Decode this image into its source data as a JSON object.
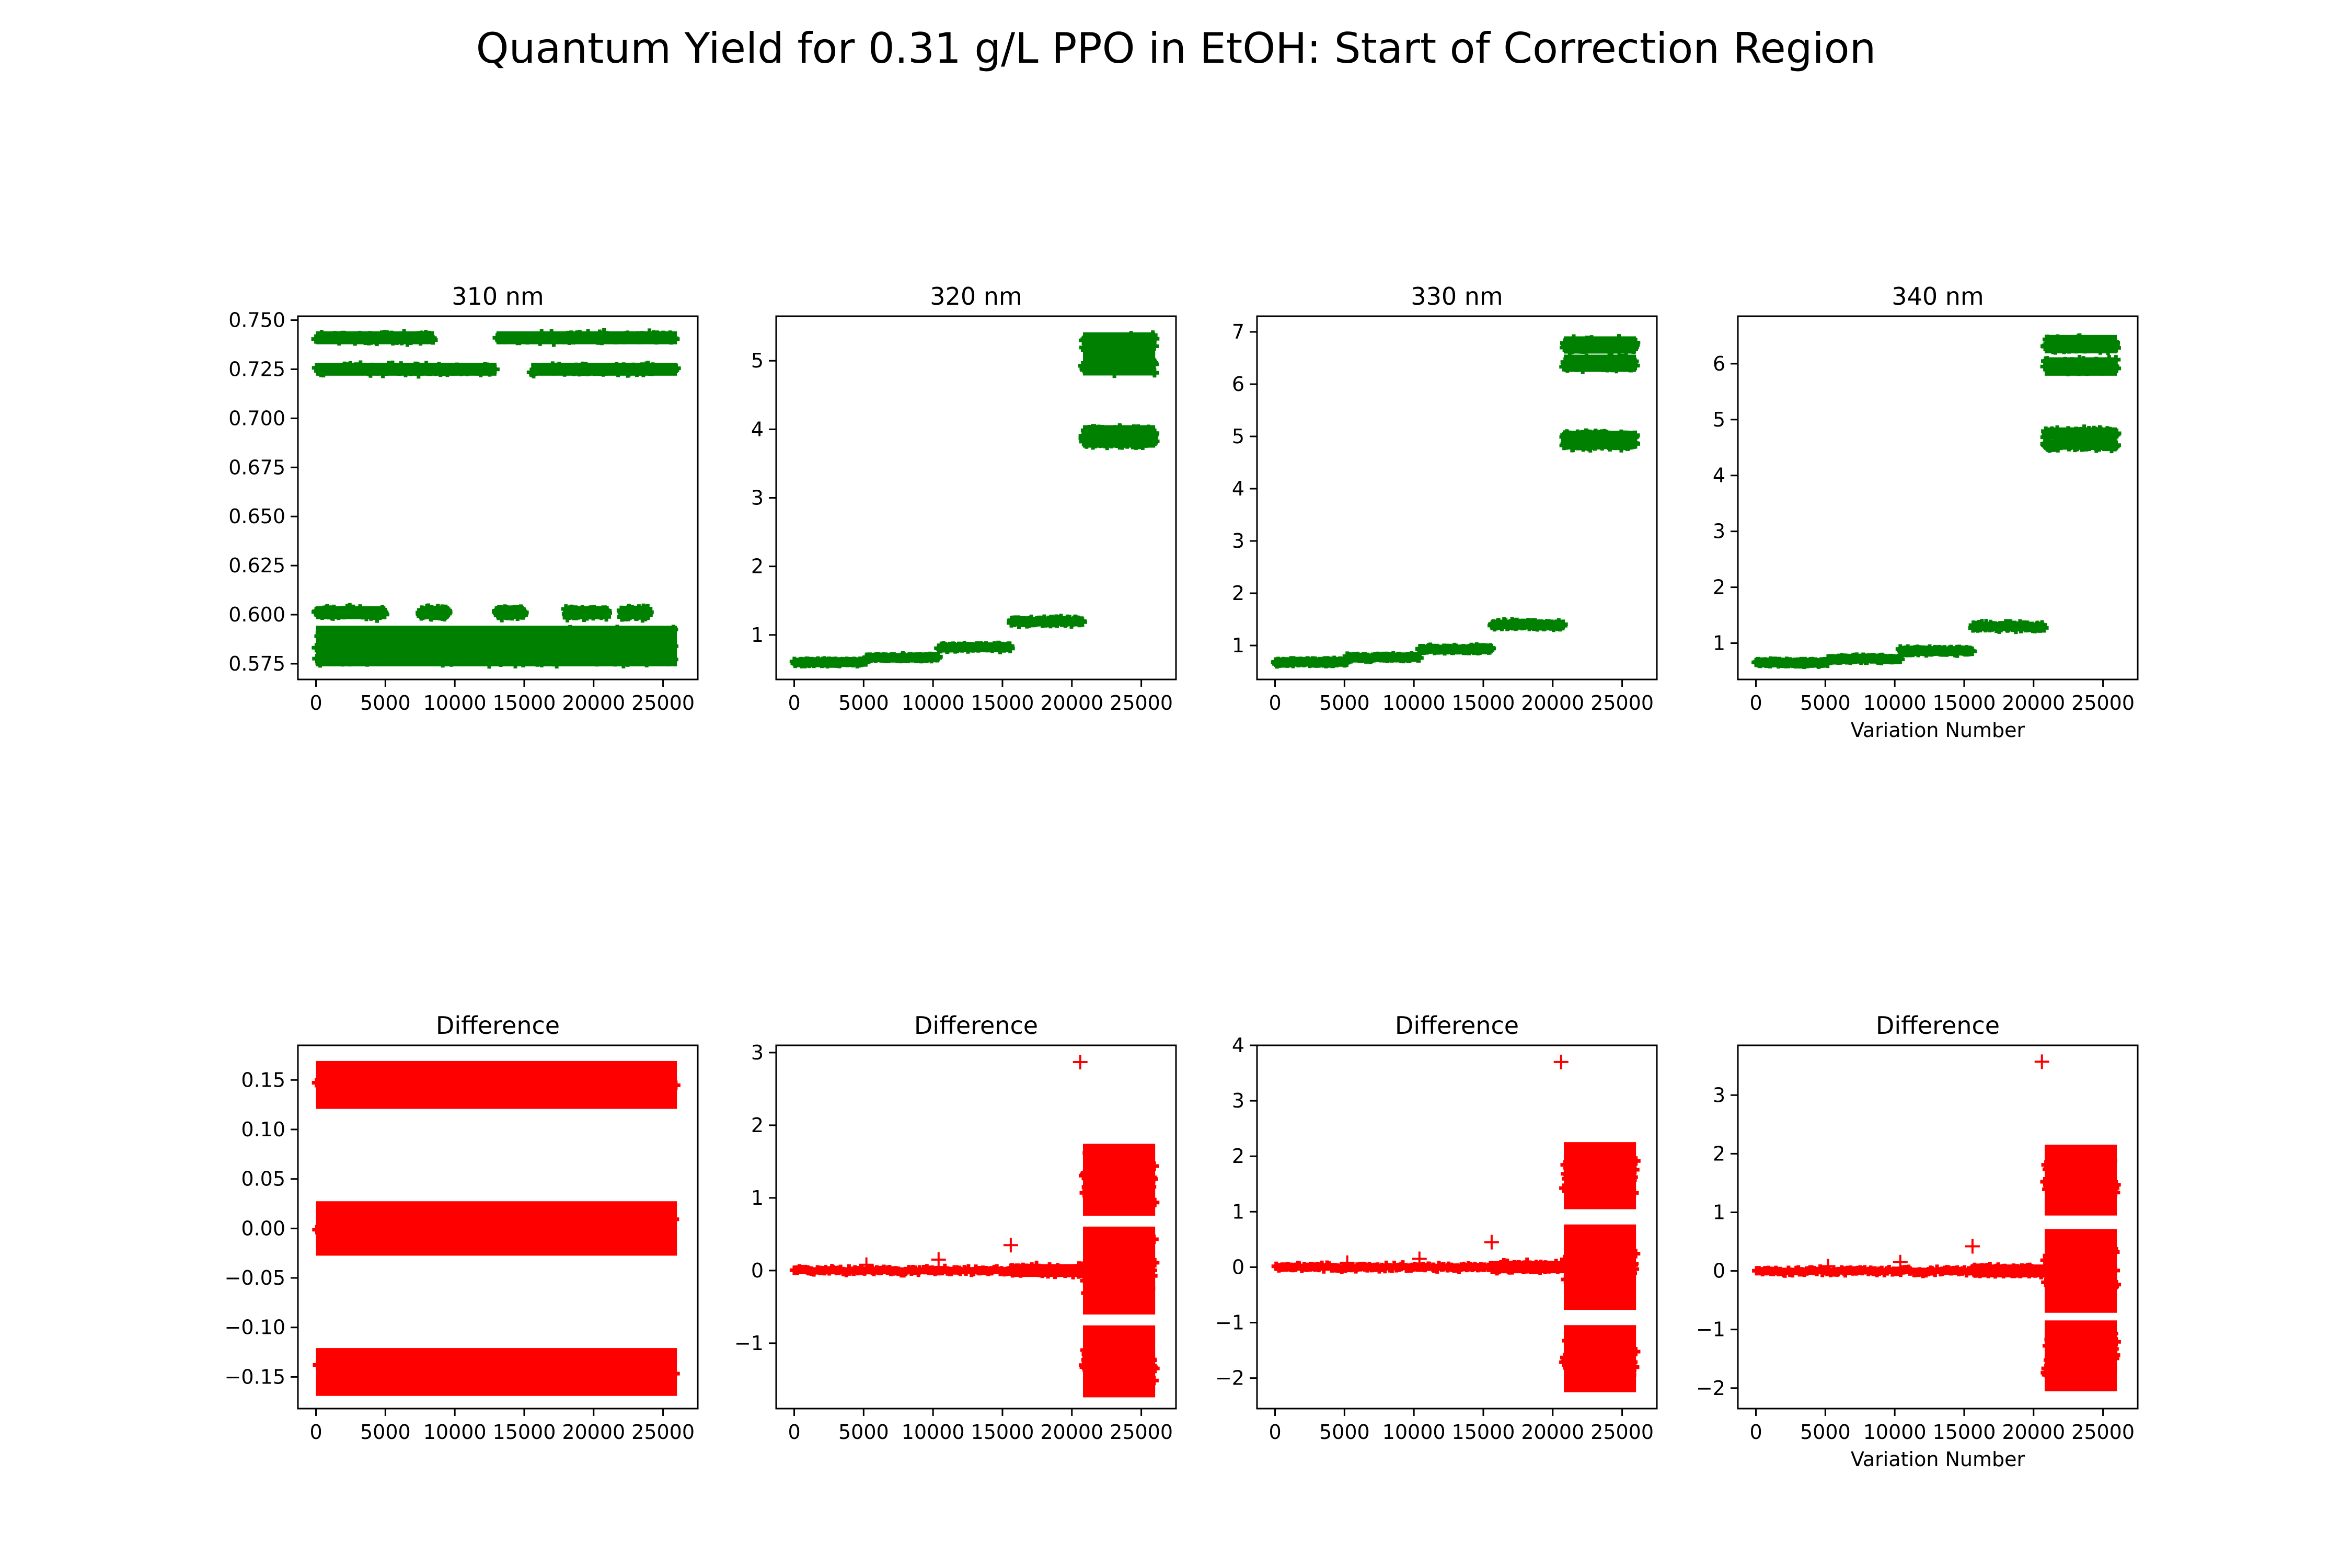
{
  "figure": {
    "title": "Quantum Yield for 0.31 g/L PPO in EtOH: Start of Correction Region",
    "marker_colors": {
      "top": "#008000",
      "bottom": "#ff0000"
    }
  },
  "chart_data": [
    {
      "type": "scatter",
      "title": "310 nm",
      "xlabel": "",
      "ylabel": "",
      "marker": "+",
      "color": "#008000",
      "xlim": [
        -1300,
        27500
      ],
      "ylim": [
        0.567,
        0.752
      ],
      "xticks": [
        0,
        5000,
        10000,
        15000,
        20000,
        25000
      ],
      "xtick_labels": [
        "0",
        "5000",
        "10000",
        "15000",
        "20000",
        "25000"
      ],
      "yticks": [
        0.575,
        0.6,
        0.625,
        0.65,
        0.675,
        0.7,
        0.725,
        0.75
      ],
      "ytick_labels": [
        "0.575",
        "0.600",
        "0.625",
        "0.650",
        "0.675",
        "0.700",
        "0.725",
        "0.750"
      ],
      "bands": [
        {
          "x": [
            0,
            8500
          ],
          "y": 0.741,
          "spread": 0.003
        },
        {
          "x": [
            13000,
            26000
          ],
          "y": 0.741,
          "spread": 0.003
        },
        {
          "x": [
            0,
            13000
          ],
          "y": 0.725,
          "spread": 0.003
        },
        {
          "x": [
            15500,
            26000
          ],
          "y": 0.725,
          "spread": 0.003
        },
        {
          "x": [
            0,
            5000
          ],
          "y": 0.601,
          "spread": 0.003
        },
        {
          "x": [
            7500,
            9500
          ],
          "y": 0.601,
          "spread": 0.003
        },
        {
          "x": [
            13000,
            15000
          ],
          "y": 0.601,
          "spread": 0.003
        },
        {
          "x": [
            18000,
            21000
          ],
          "y": 0.601,
          "spread": 0.003
        },
        {
          "x": [
            22000,
            24000
          ],
          "y": 0.601,
          "spread": 0.003
        },
        {
          "x": [
            0,
            26000
          ],
          "y": 0.59,
          "spread": 0.004
        },
        {
          "x": [
            0,
            26000
          ],
          "y": 0.583,
          "spread": 0.004
        },
        {
          "x": [
            0,
            26000
          ],
          "y": 0.577,
          "spread": 0.003
        }
      ],
      "outliers": []
    },
    {
      "type": "scatter",
      "title": "320 nm",
      "xlabel": "",
      "ylabel": "",
      "marker": "+",
      "color": "#008000",
      "xlim": [
        -1300,
        27500
      ],
      "ylim": [
        0.35,
        5.65
      ],
      "xticks": [
        0,
        5000,
        10000,
        15000,
        20000,
        25000
      ],
      "xtick_labels": [
        "0",
        "5000",
        "10000",
        "15000",
        "20000",
        "25000"
      ],
      "yticks": [
        1,
        2,
        3,
        4,
        5
      ],
      "ytick_labels": [
        "1",
        "2",
        "3",
        "4",
        "5"
      ],
      "bands": [
        {
          "x": [
            0,
            5200
          ],
          "y": 0.6,
          "spread": 0.03
        },
        {
          "x": [
            5200,
            10400
          ],
          "y": 0.67,
          "spread": 0.03
        },
        {
          "x": [
            10400,
            15600
          ],
          "y": 0.82,
          "spread": 0.04
        },
        {
          "x": [
            15600,
            20800
          ],
          "y": 1.2,
          "spread": 0.05
        },
        {
          "x": [
            20800,
            26000
          ],
          "y": 5.25,
          "spread": 0.15
        },
        {
          "x": [
            20800,
            26000
          ],
          "y": 4.95,
          "spread": 0.15
        },
        {
          "x": [
            20800,
            26000
          ],
          "y": 3.95,
          "spread": 0.1
        },
        {
          "x": [
            20800,
            26000
          ],
          "y": 3.82,
          "spread": 0.08
        }
      ],
      "outliers": []
    },
    {
      "type": "scatter",
      "title": "330 nm",
      "xlabel": "",
      "ylabel": "",
      "marker": "+",
      "color": "#008000",
      "xlim": [
        -1300,
        27500
      ],
      "ylim": [
        0.35,
        7.3
      ],
      "xticks": [
        0,
        5000,
        10000,
        15000,
        20000,
        25000
      ],
      "xtick_labels": [
        "0",
        "5000",
        "10000",
        "15000",
        "20000",
        "25000"
      ],
      "yticks": [
        1,
        2,
        3,
        4,
        5,
        6,
        7
      ],
      "ytick_labels": [
        "1",
        "2",
        "3",
        "4",
        "5",
        "6",
        "7"
      ],
      "bands": [
        {
          "x": [
            0,
            5200
          ],
          "y": 0.68,
          "spread": 0.04
        },
        {
          "x": [
            5200,
            10400
          ],
          "y": 0.77,
          "spread": 0.04
        },
        {
          "x": [
            10400,
            15600
          ],
          "y": 0.93,
          "spread": 0.05
        },
        {
          "x": [
            15600,
            20800
          ],
          "y": 1.4,
          "spread": 0.07
        },
        {
          "x": [
            20800,
            26000
          ],
          "y": 6.75,
          "spread": 0.15
        },
        {
          "x": [
            20800,
            26000
          ],
          "y": 6.4,
          "spread": 0.15
        },
        {
          "x": [
            20800,
            26000
          ],
          "y": 5.0,
          "spread": 0.1
        },
        {
          "x": [
            20800,
            26000
          ],
          "y": 4.85,
          "spread": 0.08
        }
      ],
      "outliers": []
    },
    {
      "type": "scatter",
      "title": "340 nm",
      "xlabel": "Variation Number",
      "ylabel": "",
      "marker": "+",
      "color": "#008000",
      "xlim": [
        -1300,
        27500
      ],
      "ylim": [
        0.35,
        6.85
      ],
      "xticks": [
        0,
        5000,
        10000,
        15000,
        20000,
        25000
      ],
      "xtick_labels": [
        "0",
        "5000",
        "10000",
        "15000",
        "20000",
        "25000"
      ],
      "yticks": [
        1,
        2,
        3,
        4,
        5,
        6
      ],
      "ytick_labels": [
        "1",
        "2",
        "3",
        "4",
        "5",
        "6"
      ],
      "bands": [
        {
          "x": [
            0,
            5200
          ],
          "y": 0.65,
          "spread": 0.04
        },
        {
          "x": [
            5200,
            10400
          ],
          "y": 0.72,
          "spread": 0.04
        },
        {
          "x": [
            10400,
            15600
          ],
          "y": 0.86,
          "spread": 0.05
        },
        {
          "x": [
            15600,
            20800
          ],
          "y": 1.3,
          "spread": 0.06
        },
        {
          "x": [
            20800,
            26000
          ],
          "y": 6.35,
          "spread": 0.15
        },
        {
          "x": [
            20800,
            26000
          ],
          "y": 5.95,
          "spread": 0.15
        },
        {
          "x": [
            20800,
            26000
          ],
          "y": 4.75,
          "spread": 0.1
        },
        {
          "x": [
            20800,
            26000
          ],
          "y": 4.55,
          "spread": 0.08
        }
      ],
      "outliers": []
    },
    {
      "type": "scatter",
      "title": "Difference",
      "xlabel": "",
      "ylabel": "",
      "marker": "+",
      "color": "#ff0000",
      "xlim": [
        -1300,
        27500
      ],
      "ylim": [
        -0.182,
        0.185
      ],
      "xticks": [
        0,
        5000,
        10000,
        15000,
        20000,
        25000
      ],
      "xtick_labels": [
        "0",
        "5000",
        "10000",
        "15000",
        "20000",
        "25000"
      ],
      "yticks": [
        -0.15,
        -0.1,
        -0.05,
        0.0,
        0.05,
        0.1,
        0.15
      ],
      "ytick_labels": [
        "−0.15",
        "−0.10",
        "−0.05",
        "0.00",
        "0.05",
        "0.10",
        "0.15"
      ],
      "bands": [
        {
          "x": [
            0,
            26000
          ],
          "y": 0.145,
          "spread": 0.022
        },
        {
          "x": [
            0,
            26000
          ],
          "y": 0.0,
          "spread": 0.025
        },
        {
          "x": [
            0,
            26000
          ],
          "y": -0.145,
          "spread": 0.022
        }
      ],
      "outliers": []
    },
    {
      "type": "scatter",
      "title": "Difference",
      "xlabel": "",
      "ylabel": "",
      "marker": "+",
      "color": "#ff0000",
      "xlim": [
        -1300,
        27500
      ],
      "ylim": [
        -1.9,
        3.1
      ],
      "xticks": [
        0,
        5000,
        10000,
        15000,
        20000,
        25000
      ],
      "xtick_labels": [
        "0",
        "5000",
        "10000",
        "15000",
        "20000",
        "25000"
      ],
      "yticks": [
        -1,
        0,
        1,
        2,
        3
      ],
      "ytick_labels": [
        "−1",
        "0",
        "1",
        "2",
        "3"
      ],
      "bands": [
        {
          "x": [
            0,
            15600
          ],
          "y": 0.0,
          "spread": 0.04
        },
        {
          "x": [
            15600,
            20800
          ],
          "y": 0.0,
          "spread": 0.08
        },
        {
          "x": [
            20800,
            26000
          ],
          "y": 1.25,
          "spread": 0.45
        },
        {
          "x": [
            20800,
            26000
          ],
          "y": 0.0,
          "spread": 0.55
        },
        {
          "x": [
            20800,
            26000
          ],
          "y": -1.25,
          "spread": 0.45
        }
      ],
      "outliers": [
        {
          "x": 20600,
          "y": 2.87
        },
        {
          "x": 15600,
          "y": 0.35
        },
        {
          "x": 10400,
          "y": 0.15
        },
        {
          "x": 5200,
          "y": 0.08
        }
      ]
    },
    {
      "type": "scatter",
      "title": "Difference",
      "xlabel": "",
      "ylabel": "",
      "marker": "+",
      "color": "#ff0000",
      "xlim": [
        -1300,
        27500
      ],
      "ylim": [
        -2.55,
        4.0
      ],
      "xticks": [
        0,
        5000,
        10000,
        15000,
        20000,
        25000
      ],
      "xtick_labels": [
        "0",
        "5000",
        "10000",
        "15000",
        "20000",
        "25000"
      ],
      "yticks": [
        -2,
        -1,
        0,
        1,
        2,
        3,
        4
      ],
      "ytick_labels": [
        "−2",
        "−1",
        "0",
        "1",
        "2",
        "3",
        "4"
      ],
      "bands": [
        {
          "x": [
            0,
            15600
          ],
          "y": 0.0,
          "spread": 0.05
        },
        {
          "x": [
            15600,
            20800
          ],
          "y": 0.0,
          "spread": 0.1
        },
        {
          "x": [
            20800,
            26000
          ],
          "y": 1.65,
          "spread": 0.55
        },
        {
          "x": [
            20800,
            26000
          ],
          "y": 0.0,
          "spread": 0.7
        },
        {
          "x": [
            20800,
            26000
          ],
          "y": -1.65,
          "spread": 0.55
        }
      ],
      "outliers": [
        {
          "x": 20600,
          "y": 3.7
        },
        {
          "x": 15600,
          "y": 0.45
        },
        {
          "x": 10400,
          "y": 0.15
        },
        {
          "x": 5200,
          "y": 0.08
        }
      ]
    },
    {
      "type": "scatter",
      "title": "Difference",
      "xlabel": "Variation Number",
      "ylabel": "",
      "marker": "+",
      "color": "#ff0000",
      "xlim": [
        -1300,
        27500
      ],
      "ylim": [
        -2.35,
        3.85
      ],
      "xticks": [
        0,
        5000,
        10000,
        15000,
        20000,
        25000
      ],
      "xtick_labels": [
        "0",
        "5000",
        "10000",
        "15000",
        "20000",
        "25000"
      ],
      "yticks": [
        -2,
        -1,
        0,
        1,
        2,
        3
      ],
      "ytick_labels": [
        "−2",
        "−1",
        "0",
        "1",
        "2",
        "3"
      ],
      "bands": [
        {
          "x": [
            0,
            15600
          ],
          "y": 0.0,
          "spread": 0.05
        },
        {
          "x": [
            15600,
            20800
          ],
          "y": 0.0,
          "spread": 0.1
        },
        {
          "x": [
            20800,
            26000
          ],
          "y": 1.55,
          "spread": 0.55
        },
        {
          "x": [
            20800,
            26000
          ],
          "y": 0.0,
          "spread": 0.65
        },
        {
          "x": [
            20800,
            26000
          ],
          "y": -1.45,
          "spread": 0.55
        }
      ],
      "outliers": [
        {
          "x": 20600,
          "y": 3.57
        },
        {
          "x": 15600,
          "y": 0.42
        },
        {
          "x": 10400,
          "y": 0.15
        },
        {
          "x": 5200,
          "y": 0.08
        }
      ]
    }
  ]
}
